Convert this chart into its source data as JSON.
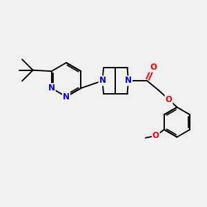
{
  "bg_color": "#f0f0f0",
  "bond_color": "#000000",
  "n_color": "#0000ff",
  "o_color": "#ff0000",
  "font_size_atom": 8.5,
  "line_width": 1.4,
  "figsize": [
    3.0,
    3.0
  ],
  "dpi": 100,
  "xlim": [
    0,
    10
  ],
  "ylim": [
    0,
    10
  ]
}
